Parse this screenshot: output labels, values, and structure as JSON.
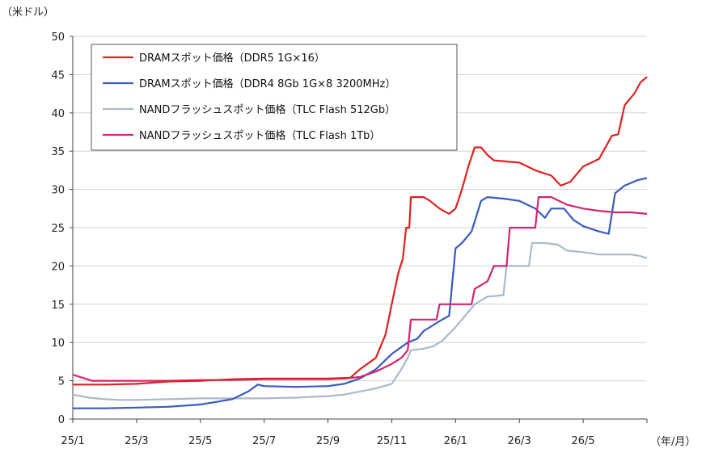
{
  "chart_data": {
    "type": "line",
    "y_unit_label": "（米ドル）",
    "x_unit_label": "（年/月）",
    "ylim": [
      0,
      50
    ],
    "y_ticks": [
      0,
      5,
      10,
      15,
      20,
      25,
      30,
      35,
      40,
      45,
      50
    ],
    "xlim": [
      0,
      18
    ],
    "x_tick_labels": [
      {
        "x": 0,
        "label": "25/1"
      },
      {
        "x": 2,
        "label": "25/3"
      },
      {
        "x": 4,
        "label": "25/5"
      },
      {
        "x": 6,
        "label": "25/7"
      },
      {
        "x": 8,
        "label": "25/9"
      },
      {
        "x": 10,
        "label": "25/11"
      },
      {
        "x": 12,
        "label": "26/1"
      },
      {
        "x": 14,
        "label": "26/3"
      },
      {
        "x": 16,
        "label": "26/5"
      },
      {
        "x": 18,
        "label": ""
      }
    ],
    "grid": true,
    "legend_position": "top-left",
    "series": [
      {
        "name": "DRAMスポット価格（DDR5 1G×16）",
        "color": "#e02020",
        "points": [
          [
            0,
            4.5
          ],
          [
            1,
            4.5
          ],
          [
            2,
            4.6
          ],
          [
            3,
            4.9
          ],
          [
            4,
            5.0
          ],
          [
            5,
            5.2
          ],
          [
            6,
            5.3
          ],
          [
            7,
            5.3
          ],
          [
            8,
            5.3
          ],
          [
            8.7,
            5.4
          ],
          [
            9,
            6.5
          ],
          [
            9.5,
            8.0
          ],
          [
            9.8,
            11
          ],
          [
            10,
            15
          ],
          [
            10.2,
            19
          ],
          [
            10.35,
            21
          ],
          [
            10.45,
            25
          ],
          [
            10.55,
            25
          ],
          [
            10.6,
            29
          ],
          [
            11,
            29
          ],
          [
            11.2,
            28.5
          ],
          [
            11.5,
            27.5
          ],
          [
            11.8,
            26.8
          ],
          [
            12,
            27.5
          ],
          [
            12.2,
            30
          ],
          [
            12.4,
            33
          ],
          [
            12.6,
            35.5
          ],
          [
            12.8,
            35.5
          ],
          [
            13,
            34.5
          ],
          [
            13.2,
            33.8
          ],
          [
            14,
            33.5
          ],
          [
            14.5,
            32.5
          ],
          [
            15,
            31.8
          ],
          [
            15.3,
            30.5
          ],
          [
            15.6,
            31
          ],
          [
            16,
            33
          ],
          [
            16.5,
            34
          ],
          [
            16.9,
            37
          ],
          [
            17.1,
            37.2
          ],
          [
            17.3,
            41
          ],
          [
            17.6,
            42.5
          ],
          [
            17.8,
            44
          ],
          [
            18,
            44.7
          ]
        ]
      },
      {
        "name": "DRAMスポット価格（DDR4 8Gb 1G×8 3200MHz）",
        "color": "#3a5bbf",
        "points": [
          [
            0,
            1.4
          ],
          [
            1,
            1.4
          ],
          [
            2,
            1.5
          ],
          [
            3,
            1.6
          ],
          [
            4,
            1.9
          ],
          [
            5,
            2.6
          ],
          [
            5.5,
            3.6
          ],
          [
            5.8,
            4.5
          ],
          [
            6,
            4.3
          ],
          [
            7,
            4.2
          ],
          [
            8,
            4.3
          ],
          [
            8.5,
            4.6
          ],
          [
            9,
            5.3
          ],
          [
            9.5,
            6.5
          ],
          [
            10,
            8.5
          ],
          [
            10.5,
            10
          ],
          [
            10.8,
            10.5
          ],
          [
            11,
            11.5
          ],
          [
            11.5,
            12.8
          ],
          [
            11.8,
            13.5
          ],
          [
            12,
            22.3
          ],
          [
            12.2,
            23
          ],
          [
            12.5,
            24.5
          ],
          [
            12.8,
            28.5
          ],
          [
            13,
            29
          ],
          [
            13.5,
            28.8
          ],
          [
            14,
            28.5
          ],
          [
            14.5,
            27.5
          ],
          [
            14.8,
            26.3
          ],
          [
            15,
            27.5
          ],
          [
            15.4,
            27.5
          ],
          [
            15.7,
            26
          ],
          [
            16,
            25.2
          ],
          [
            16.5,
            24.5
          ],
          [
            16.8,
            24.2
          ],
          [
            17,
            29.5
          ],
          [
            17.3,
            30.5
          ],
          [
            17.7,
            31.2
          ],
          [
            18,
            31.5
          ]
        ]
      },
      {
        "name": "NANDフラッシュスポット価格（TLC Flash 512Gb）",
        "color": "#aab9c9",
        "points": [
          [
            0,
            3.2
          ],
          [
            0.5,
            2.8
          ],
          [
            1,
            2.6
          ],
          [
            1.5,
            2.5
          ],
          [
            2,
            2.5
          ],
          [
            3,
            2.6
          ],
          [
            4,
            2.7
          ],
          [
            5,
            2.7
          ],
          [
            6,
            2.7
          ],
          [
            7,
            2.8
          ],
          [
            7.5,
            2.9
          ],
          [
            8,
            3.0
          ],
          [
            8.5,
            3.2
          ],
          [
            9,
            3.6
          ],
          [
            9.5,
            4.0
          ],
          [
            10,
            4.6
          ],
          [
            10.3,
            6.5
          ],
          [
            10.5,
            8.0
          ],
          [
            10.6,
            9.0
          ],
          [
            11,
            9.2
          ],
          [
            11.3,
            9.5
          ],
          [
            11.6,
            10.3
          ],
          [
            12,
            12
          ],
          [
            12.3,
            13.5
          ],
          [
            12.6,
            15
          ],
          [
            13,
            16
          ],
          [
            13.3,
            16.1
          ],
          [
            13.5,
            16.2
          ],
          [
            13.6,
            20
          ],
          [
            14,
            20
          ],
          [
            14.3,
            20
          ],
          [
            14.4,
            23
          ],
          [
            14.8,
            23
          ],
          [
            15.2,
            22.8
          ],
          [
            15.5,
            22
          ],
          [
            16,
            21.8
          ],
          [
            16.5,
            21.5
          ],
          [
            17,
            21.5
          ],
          [
            17.5,
            21.5
          ],
          [
            17.8,
            21.3
          ],
          [
            18,
            21
          ]
        ]
      },
      {
        "name": "NANDフラッシュスポット価格（TLC Flash 1Tb）",
        "color": "#d6246e",
        "points": [
          [
            0,
            5.8
          ],
          [
            0.3,
            5.4
          ],
          [
            0.6,
            5.0
          ],
          [
            1,
            5.0
          ],
          [
            2,
            5.0
          ],
          [
            3,
            5.0
          ],
          [
            4,
            5.1
          ],
          [
            5,
            5.1
          ],
          [
            6,
            5.2
          ],
          [
            7,
            5.2
          ],
          [
            8,
            5.2
          ],
          [
            8.5,
            5.3
          ],
          [
            9,
            5.5
          ],
          [
            9.5,
            6.2
          ],
          [
            10,
            7.2
          ],
          [
            10.3,
            8.0
          ],
          [
            10.5,
            9.0
          ],
          [
            10.6,
            13
          ],
          [
            11,
            13
          ],
          [
            11.4,
            13
          ],
          [
            11.5,
            15
          ],
          [
            12,
            15
          ],
          [
            12.5,
            15
          ],
          [
            12.6,
            17
          ],
          [
            13,
            18
          ],
          [
            13.2,
            20
          ],
          [
            13.6,
            20
          ],
          [
            13.7,
            25
          ],
          [
            14,
            25
          ],
          [
            14.5,
            25
          ],
          [
            14.6,
            29
          ],
          [
            15,
            29
          ],
          [
            15.5,
            28
          ],
          [
            16,
            27.5
          ],
          [
            16.5,
            27.2
          ],
          [
            17,
            27
          ],
          [
            17.5,
            27
          ],
          [
            18,
            26.8
          ]
        ]
      }
    ]
  }
}
